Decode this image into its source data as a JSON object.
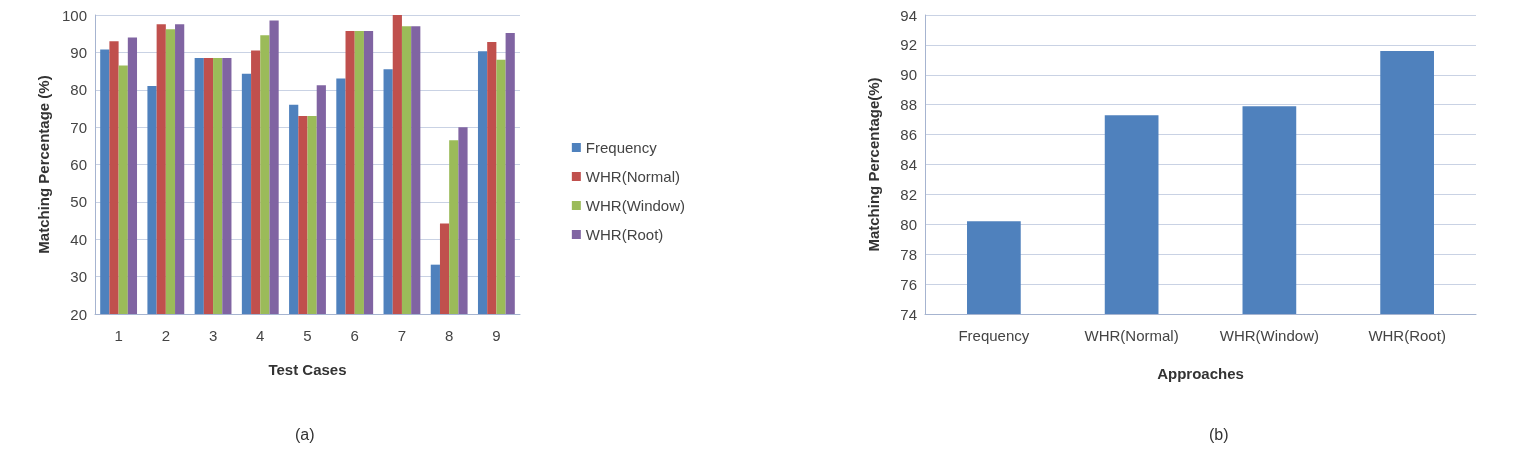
{
  "chart_data": [
    {
      "type": "bar",
      "xlabel": "Test Cases",
      "ylabel": "Matching Percentage (%)",
      "annotations": [
        "(a)"
      ],
      "categories": [
        "1",
        "2",
        "3",
        "4",
        "5",
        "6",
        "7",
        "8",
        "9"
      ],
      "series": [
        {
          "name": "Frequency",
          "color": "#4f81bd",
          "values": [
            90.8,
            81,
            88.5,
            84.3,
            76,
            83,
            85.5,
            33.2,
            90.3
          ]
        },
        {
          "name": "WHR(Normal)",
          "color": "#c0504d",
          "values": [
            93,
            97.5,
            88.5,
            90.5,
            73,
            95.7,
            100,
            44.2,
            92.8
          ]
        },
        {
          "name": "WHR(Window)",
          "color": "#9bbb59",
          "values": [
            86.5,
            96.2,
            88.5,
            94.6,
            73,
            95.7,
            97,
            66.5,
            88
          ]
        },
        {
          "name": "WHR(Root)",
          "color": "#8064a2",
          "values": [
            94,
            97.5,
            88.5,
            98.5,
            81.2,
            95.7,
            97,
            70,
            95.2
          ]
        }
      ],
      "ylim": [
        20,
        100
      ],
      "yticks": [
        20,
        30,
        40,
        50,
        60,
        70,
        80,
        90,
        100
      ],
      "grid": "y",
      "legend": "right"
    },
    {
      "type": "bar",
      "xlabel": "Approaches",
      "ylabel": "Matching Percentage(%)",
      "annotations": [
        "(b)"
      ],
      "categories": [
        "Frequency",
        "WHR(Normal)",
        "WHR(Window)",
        "WHR(Root)"
      ],
      "values": [
        80.2,
        87.3,
        87.9,
        91.6
      ],
      "color": "#4f81bd",
      "ylim": [
        74,
        94
      ],
      "yticks": [
        74,
        76,
        78,
        80,
        82,
        84,
        86,
        88,
        90,
        92,
        94
      ],
      "grid": "y"
    }
  ]
}
